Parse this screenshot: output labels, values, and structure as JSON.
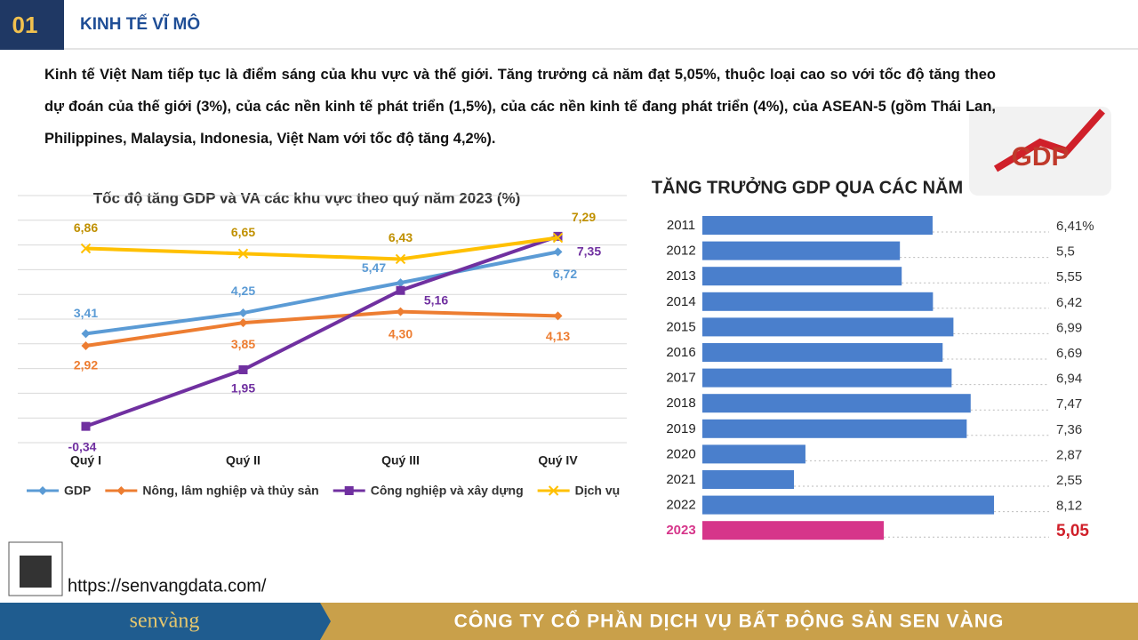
{
  "header": {
    "number": "01",
    "title": "KINH TẾ VĨ MÔ"
  },
  "intro": "Kinh tế Việt Nam tiếp tục là điểm sáng của khu vực và thế giới. Tăng trưởng cả năm đạt 5,05%, thuộc loại cao so với tốc độ tăng theo dự đoán của thế giới (3%), của các nền kinh tế phát triển (1,5%), của các nền kinh tế đang phát triển (4%), của ASEAN-5 (gồm Thái Lan, Philippines, Malaysia, Indonesia, Việt Nam với tốc độ tăng 4,2%).",
  "chart_data": [
    {
      "type": "line",
      "title": "Tốc độ tăng GDP và VA các khu vực theo quý năm 2023 (%)",
      "categories": [
        "Quý I",
        "Quý II",
        "Quý III",
        "Quý IV"
      ],
      "series": [
        {
          "name": "GDP",
          "color": "#5b9bd5",
          "marker": "diamond",
          "values": [
            3.41,
            4.25,
            5.47,
            6.72
          ],
          "value_labels": [
            "3,41",
            "4,25",
            "5,47",
            "6,72"
          ]
        },
        {
          "name": "Nông, lâm nghiệp và thủy sản",
          "color": "#ed7d31",
          "marker": "diamond",
          "values": [
            2.92,
            3.85,
            4.3,
            4.13
          ],
          "value_labels": [
            "2,92",
            "3,85",
            "4,30",
            "4,13"
          ]
        },
        {
          "name": "Công nghiệp và xây dựng",
          "color": "#7030a0",
          "marker": "square",
          "values": [
            -0.34,
            1.95,
            5.16,
            7.35
          ],
          "value_labels": [
            "-0,34",
            "1,95",
            "5,16",
            "7,35"
          ]
        },
        {
          "name": "Dịch vụ",
          "color": "#ffc000",
          "marker": "x",
          "values": [
            6.86,
            6.65,
            6.43,
            7.29
          ],
          "value_labels": [
            "6,86",
            "6,65",
            "6,43",
            "7,29"
          ]
        }
      ],
      "ylim": [
        -1,
        9
      ],
      "yticks": [
        -1,
        0,
        1,
        2,
        3,
        4,
        5,
        6,
        7,
        8,
        9
      ],
      "grid": true,
      "legend": "bottom"
    },
    {
      "type": "bar",
      "orientation": "horizontal",
      "title": "TĂNG TRƯỞNG GDP QUA CÁC NĂM",
      "badge": "GDP",
      "categories": [
        "2011",
        "2012",
        "2013",
        "2014",
        "2015",
        "2016",
        "2017",
        "2018",
        "2019",
        "2020",
        "2021",
        "2022",
        "2023"
      ],
      "values": [
        6.41,
        5.5,
        5.55,
        6.42,
        6.99,
        6.69,
        6.94,
        7.47,
        7.36,
        2.87,
        2.55,
        8.12,
        5.05
      ],
      "value_labels": [
        "6,41%",
        "5,5",
        "5,55",
        "6,42",
        "6,99",
        "6,69",
        "6,94",
        "7,47",
        "7,36",
        "2,87",
        "2,55",
        "8,12",
        "5,05"
      ],
      "colors": [
        "#4a7fcc",
        "#4a7fcc",
        "#4a7fcc",
        "#4a7fcc",
        "#4a7fcc",
        "#4a7fcc",
        "#4a7fcc",
        "#4a7fcc",
        "#4a7fcc",
        "#4a7fcc",
        "#4a7fcc",
        "#4a7fcc",
        "#d6358a"
      ],
      "xlim": [
        0,
        10
      ]
    }
  ],
  "footer": {
    "url": "https://senvangdata.com/",
    "logo": "senvàng",
    "company": "CÔNG TY CỔ PHẦN DỊCH VỤ BẤT ĐỘNG SẢN SEN VÀNG"
  }
}
